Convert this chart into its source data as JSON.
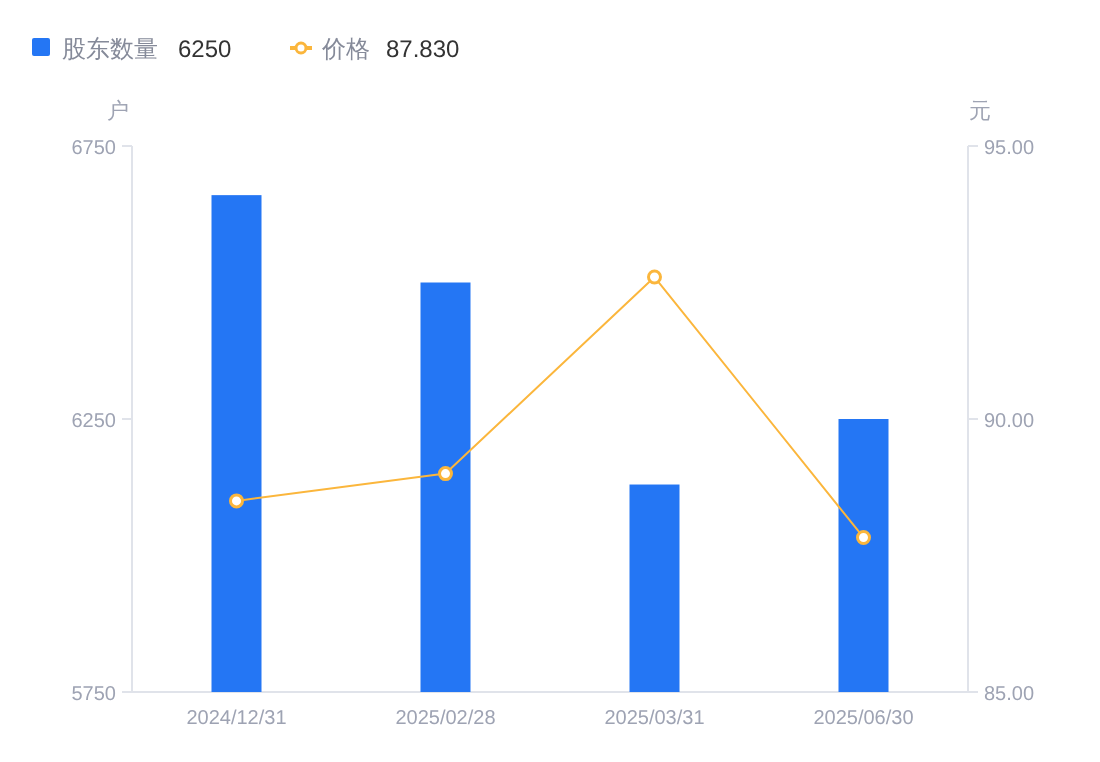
{
  "chart_data": {
    "type": "bar",
    "categories": [
      "2024/12/31",
      "2025/02/28",
      "2025/03/31",
      "2025/06/30"
    ],
    "series": [
      {
        "name": "股东数量",
        "color": "#2476f4",
        "values": [
          6660,
          6500,
          6130,
          6250
        ]
      },
      {
        "name": "价格",
        "type": "line",
        "axis": "y2",
        "color": "#fbb63c",
        "marker": "circle",
        "values": [
          88.5,
          89.0,
          92.6,
          87.83
        ]
      }
    ],
    "ylabel": "户",
    "y2label": "元",
    "ylim": [
      5750,
      6750
    ],
    "yticks": [
      5750,
      6250,
      6750
    ],
    "y2lim": [
      85,
      95
    ],
    "y2ticks": [
      {
        "value": 85,
        "label": "85.00"
      },
      {
        "value": 90,
        "label": "90.00"
      },
      {
        "value": 95,
        "label": "95.00"
      }
    ],
    "annotations": [
      "6250",
      "87.830"
    ],
    "legend": "top left",
    "grid": false
  }
}
